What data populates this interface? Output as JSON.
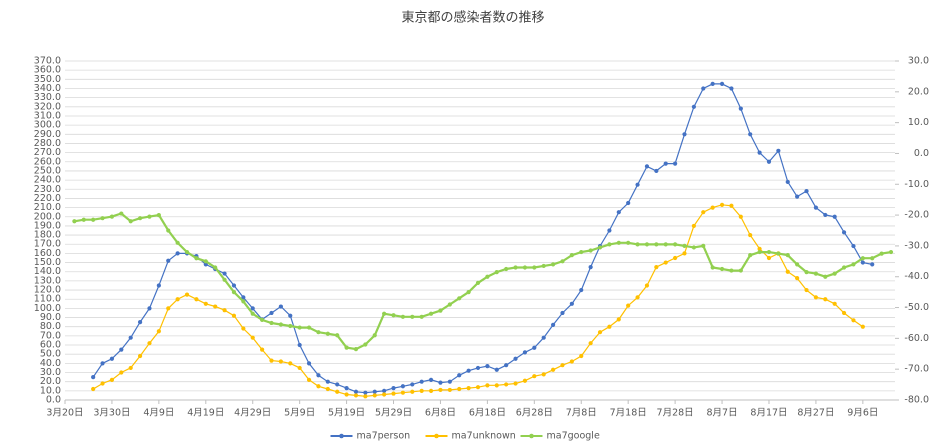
{
  "chart_data": {
    "type": "line",
    "title": "東京都の感染者数の推移",
    "categories": [
      "3月20日",
      null,
      null,
      null,
      null,
      "3月30日",
      null,
      null,
      null,
      null,
      "4月9日",
      null,
      null,
      null,
      null,
      "4月19日",
      null,
      null,
      null,
      null,
      "4月29日",
      null,
      null,
      null,
      null,
      "5月9日",
      null,
      null,
      null,
      null,
      "5月19日",
      null,
      null,
      null,
      null,
      "5月29日",
      null,
      null,
      null,
      null,
      "6月8日",
      null,
      null,
      null,
      null,
      "6月18日",
      null,
      null,
      null,
      null,
      "6月28日",
      null,
      null,
      null,
      null,
      "7月8日",
      null,
      null,
      null,
      null,
      "7月18日",
      null,
      null,
      null,
      null,
      "7月28日",
      null,
      null,
      null,
      null,
      "8月7日",
      null,
      null,
      null,
      null,
      "8月17日",
      null,
      null,
      null,
      null,
      "8月27日",
      null,
      null,
      null,
      null,
      "9月6日",
      null,
      null,
      null
    ],
    "series": [
      {
        "name": "ma7person",
        "color": "#4472c4",
        "values": [
          null,
          null,
          null,
          25,
          40,
          45,
          55,
          68,
          85,
          100,
          125,
          152,
          160,
          160,
          157,
          148,
          143,
          138,
          125,
          112,
          100,
          88,
          95,
          102,
          92,
          60,
          40,
          27,
          20,
          17,
          13,
          9,
          8,
          9,
          10,
          13,
          15,
          17,
          20,
          22,
          19,
          20,
          27,
          32,
          35,
          37,
          33,
          38,
          45,
          52,
          57,
          68,
          82,
          95,
          105,
          120,
          145,
          168,
          185,
          205,
          215,
          235,
          255,
          250,
          258,
          258,
          290,
          320,
          340,
          345,
          345,
          340,
          318,
          290,
          270,
          260,
          272,
          238,
          222,
          228,
          210,
          202,
          200,
          183,
          168,
          150,
          148,
          null,
          null
        ]
      },
      {
        "name": "ma7unknown",
        "color": "#ffc000",
        "values": [
          null,
          null,
          null,
          12,
          18,
          22,
          30,
          35,
          48,
          62,
          75,
          100,
          110,
          115,
          110,
          105,
          102,
          98,
          92,
          78,
          68,
          55,
          43,
          42,
          40,
          35,
          22,
          15,
          12,
          9,
          6,
          5,
          4,
          5,
          6,
          7,
          8,
          9,
          10,
          10,
          11,
          11,
          12,
          13,
          14,
          16,
          16,
          17,
          18,
          21,
          26,
          28,
          33,
          38,
          42,
          48,
          62,
          74,
          80,
          88,
          103,
          112,
          125,
          145,
          150,
          155,
          160,
          190,
          205,
          210,
          213,
          212,
          200,
          180,
          165,
          155,
          160,
          140,
          133,
          120,
          112,
          110,
          105,
          95,
          87,
          80,
          null,
          null,
          null
        ]
      },
      {
        "name": "ma7google",
        "color": "#92d050",
        "axis": "y2",
        "values": [
          null,
          -22,
          -21.5,
          -21.5,
          -21,
          -20.5,
          -19.5,
          -22,
          -21,
          -20.5,
          -20,
          -25,
          -29,
          -32,
          -34,
          -35,
          -37,
          -41,
          -45,
          -48,
          -52,
          -54,
          -55,
          -55.5,
          -56,
          -56.5,
          -56.5,
          -58,
          -58.5,
          -59,
          -63,
          -63.5,
          -62,
          -59,
          -52,
          -52.5,
          -53,
          -53,
          -53,
          -52,
          -51,
          -49,
          -47,
          -45,
          -42,
          -40,
          -38.5,
          -37.5,
          -37,
          -37,
          -37,
          -36.5,
          -36,
          -35,
          -33,
          -32,
          -31.5,
          -30.5,
          -29.5,
          -29,
          -29,
          -29.5,
          -29.5,
          -29.5,
          -29.5,
          -29.5,
          -30,
          -30.5,
          -30,
          -37,
          -37.5,
          -38,
          -38,
          -33,
          -32,
          -32,
          -32.5,
          -33,
          -36,
          -38.5,
          -39,
          -40,
          -39,
          -37,
          -36,
          -34,
          -34,
          -32.5,
          -32
        ]
      }
    ],
    "ylim": [
      0,
      370
    ],
    "yticks": [
      {
        "value": 0,
        "label": "0.0"
      },
      {
        "value": 10,
        "label": "10.0"
      },
      {
        "value": 20,
        "label": "20.0"
      },
      {
        "value": 30,
        "label": "30.0"
      },
      {
        "value": 40,
        "label": "40.0"
      },
      {
        "value": 50,
        "label": "50.0"
      },
      {
        "value": 60,
        "label": "60.0"
      },
      {
        "value": 70,
        "label": "70.0"
      },
      {
        "value": 80,
        "label": "80.0"
      },
      {
        "value": 90,
        "label": "90.0"
      },
      {
        "value": 100,
        "label": "100.0"
      },
      {
        "value": 110,
        "label": "110.0"
      },
      {
        "value": 120,
        "label": "120.0"
      },
      {
        "value": 130,
        "label": "130.0"
      },
      {
        "value": 140,
        "label": "140.0"
      },
      {
        "value": 150,
        "label": "150.0"
      },
      {
        "value": 160,
        "label": "160.0"
      },
      {
        "value": 170,
        "label": "170.0"
      },
      {
        "value": 180,
        "label": "180.0"
      },
      {
        "value": 190,
        "label": "190.0"
      },
      {
        "value": 200,
        "label": "200.0"
      },
      {
        "value": 210,
        "label": "210.0"
      },
      {
        "value": 220,
        "label": "220.0"
      },
      {
        "value": 230,
        "label": "230.0"
      },
      {
        "value": 240,
        "label": "240.0"
      },
      {
        "value": 250,
        "label": "250.0"
      },
      {
        "value": 260,
        "label": "260.0"
      },
      {
        "value": 270,
        "label": "270.0"
      },
      {
        "value": 280,
        "label": "280.0"
      },
      {
        "value": 290,
        "label": "290.0"
      },
      {
        "value": 300,
        "label": "300.0"
      },
      {
        "value": 310,
        "label": "310.0"
      },
      {
        "value": 320,
        "label": "320.0"
      },
      {
        "value": 330,
        "label": "330.0"
      },
      {
        "value": 340,
        "label": "340.0"
      },
      {
        "value": 350,
        "label": "350.0"
      },
      {
        "value": 360,
        "label": "360.0"
      },
      {
        "value": 370,
        "label": "370.0"
      }
    ],
    "y2lim": [
      -80,
      30
    ],
    "y2ticks": [
      {
        "value": -80,
        "label": "-80.0"
      },
      {
        "value": -70,
        "label": "-70.0"
      },
      {
        "value": -60,
        "label": "-60.0"
      },
      {
        "value": -50,
        "label": "-50.0"
      },
      {
        "value": -40,
        "label": "-40.0"
      },
      {
        "value": -30,
        "label": "-30.0"
      },
      {
        "value": -20,
        "label": "-20.0"
      },
      {
        "value": -10,
        "label": "-10.0"
      },
      {
        "value": 0,
        "label": "0.0"
      },
      {
        "value": 10,
        "label": "10.0"
      },
      {
        "value": 20,
        "label": "20.0"
      },
      {
        "value": 30,
        "label": "30.0"
      }
    ],
    "grid": true,
    "legend": "bottom"
  }
}
